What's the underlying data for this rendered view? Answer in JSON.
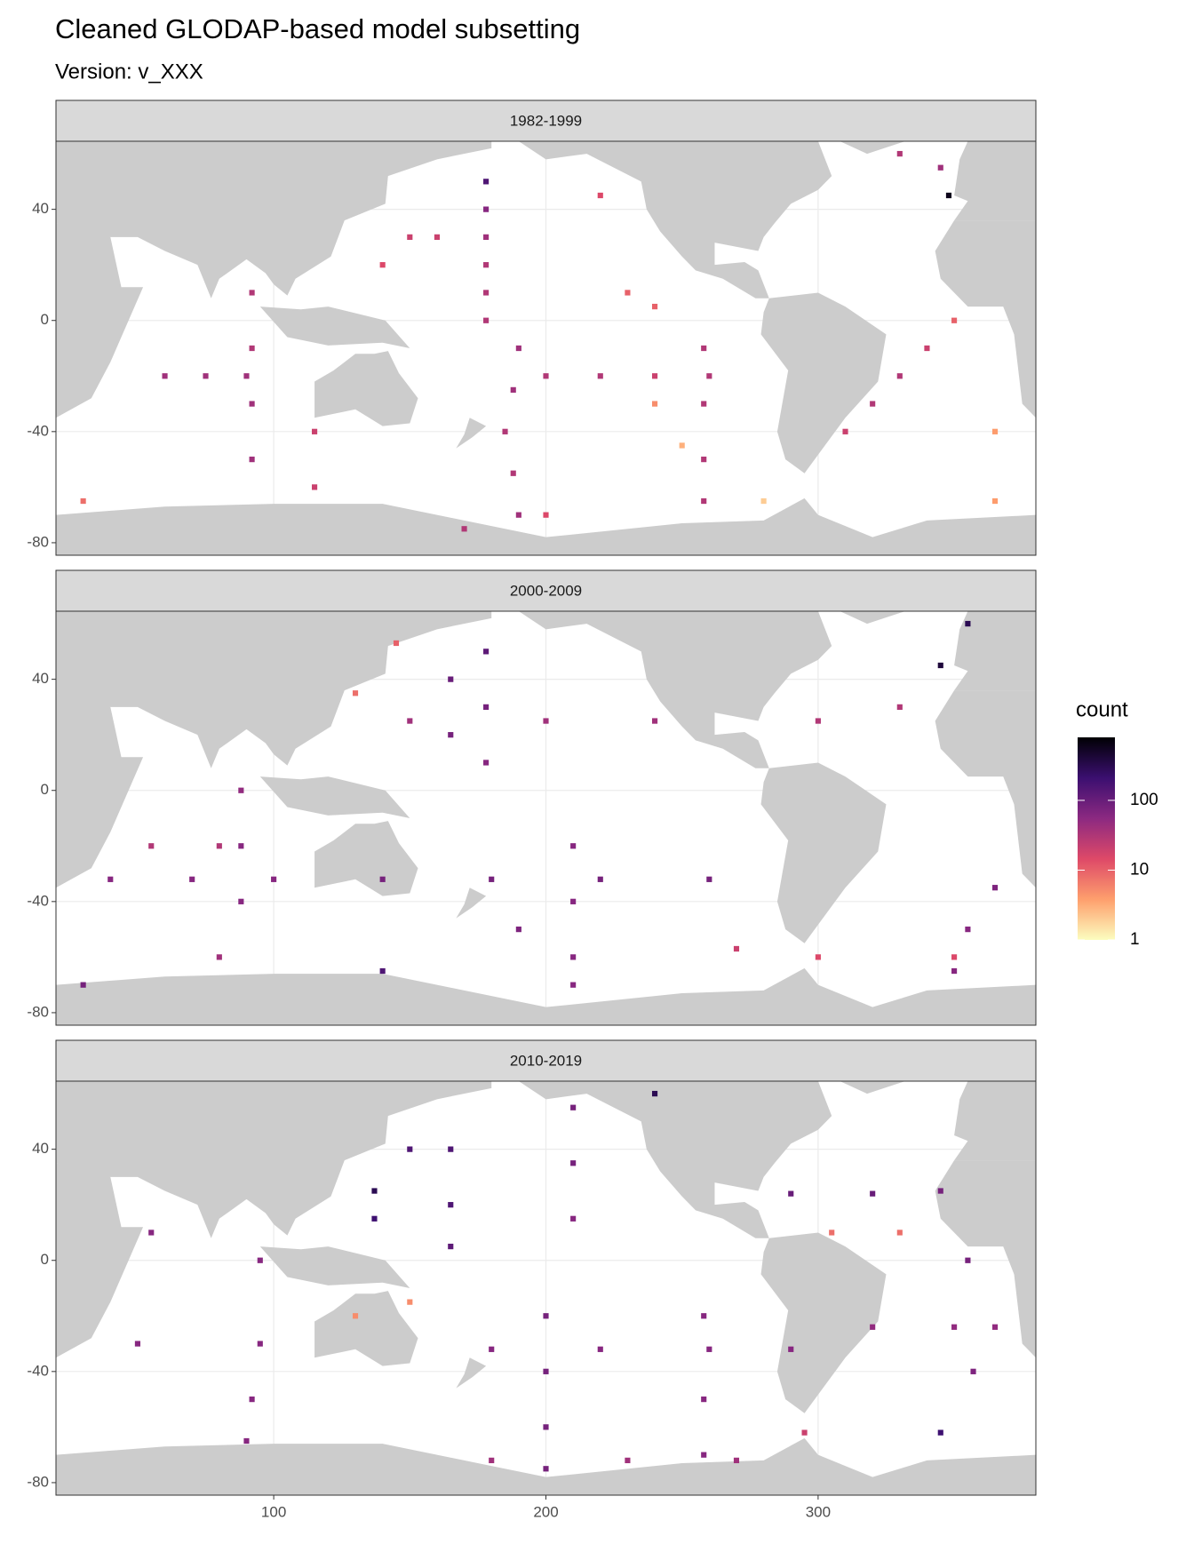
{
  "chart_data": {
    "type": "tile",
    "title": "Cleaned GLODAP-based model subsetting",
    "subtitle": "Version: v_XXX",
    "legend_title": "count",
    "xlim": [
      20,
      380
    ],
    "ylim": [
      -84.5,
      64.5
    ],
    "xticks": [
      100,
      200,
      300
    ],
    "yticks": [
      -80,
      -40,
      0,
      40
    ],
    "grid": true,
    "color_scale": {
      "log": true,
      "limits": [
        1,
        800
      ],
      "ticks": [
        1,
        10,
        100
      ],
      "colors": [
        "#fcfdbf",
        "#fe9f6d",
        "#de4968",
        "#8c2981",
        "#3b0f70",
        "#000004"
      ]
    },
    "facets": [
      {
        "label": "1982-1999",
        "x": [
          178,
          178,
          178,
          178,
          178,
          178,
          190,
          188,
          185,
          188,
          190,
          200,
          220,
          240,
          260,
          348,
          345,
          330,
          258,
          258,
          258,
          258,
          60,
          75,
          90,
          92,
          92,
          92,
          92,
          115,
          115,
          310,
          320,
          330,
          340,
          350,
          240,
          250,
          280,
          365,
          365,
          30,
          150,
          160,
          140,
          220,
          230,
          240,
          200,
          170
        ],
        "y": [
          50,
          40,
          30,
          20,
          10,
          0,
          -10,
          -25,
          -40,
          -55,
          -70,
          -20,
          -20,
          -20,
          -20,
          45,
          55,
          60,
          -10,
          -30,
          -50,
          -65,
          -20,
          -20,
          -20,
          10,
          -10,
          -30,
          -50,
          -40,
          -60,
          -40,
          -30,
          -20,
          -10,
          0,
          -30,
          -45,
          -65,
          -40,
          -65,
          -65,
          30,
          30,
          20,
          45,
          10,
          5,
          -70,
          -75
        ],
        "values": [
          150,
          60,
          40,
          30,
          30,
          30,
          40,
          40,
          30,
          30,
          40,
          30,
          30,
          20,
          30,
          600,
          40,
          30,
          30,
          30,
          30,
          30,
          40,
          40,
          40,
          30,
          30,
          40,
          40,
          20,
          20,
          20,
          30,
          30,
          20,
          10,
          5,
          3,
          2,
          4,
          4,
          8,
          20,
          20,
          15,
          15,
          10,
          10,
          15,
          30
        ]
      },
      {
        "label": "2000-2009",
        "x": [
          40,
          70,
          100,
          140,
          180,
          220,
          260,
          178,
          178,
          178,
          210,
          210,
          210,
          210,
          165,
          165,
          150,
          200,
          240,
          345,
          355,
          55,
          80,
          88,
          88,
          88,
          80,
          300,
          330,
          270,
          300,
          350,
          365,
          355,
          350,
          30,
          140,
          190,
          145,
          130
        ],
        "y": [
          -32,
          -32,
          -32,
          -32,
          -32,
          -32,
          -32,
          50,
          30,
          10,
          -20,
          -40,
          -60,
          -70,
          40,
          20,
          25,
          25,
          25,
          45,
          60,
          -20,
          -20,
          0,
          -20,
          -40,
          -60,
          25,
          30,
          -57,
          -60,
          -60,
          -35,
          -50,
          -65,
          -70,
          -65,
          -50,
          53,
          35
        ],
        "values": [
          60,
          60,
          60,
          80,
          80,
          80,
          80,
          120,
          80,
          60,
          60,
          60,
          60,
          60,
          100,
          80,
          40,
          40,
          40,
          400,
          300,
          30,
          30,
          50,
          60,
          60,
          40,
          30,
          30,
          20,
          15,
          15,
          70,
          60,
          60,
          80,
          150,
          70,
          10,
          8
        ]
      },
      {
        "label": "2010-2019",
        "x": [
          180,
          220,
          260,
          290,
          200,
          200,
          200,
          200,
          137,
          137,
          165,
          165,
          165,
          150,
          210,
          210,
          210,
          290,
          320,
          345,
          95,
          95,
          92,
          90,
          55,
          50,
          258,
          258,
          258,
          320,
          350,
          365,
          355,
          357,
          345,
          295,
          305,
          330,
          180,
          230,
          270,
          240,
          130,
          150
        ],
        "y": [
          -32,
          -32,
          -32,
          -32,
          -20,
          -40,
          -60,
          -75,
          25,
          15,
          40,
          20,
          5,
          40,
          55,
          35,
          15,
          24,
          24,
          25,
          0,
          -30,
          -50,
          -65,
          10,
          -30,
          -20,
          -50,
          -70,
          -24,
          -24,
          -24,
          0,
          -40,
          -62,
          -62,
          10,
          10,
          -72,
          -72,
          -72,
          60,
          -20,
          -15
        ],
        "values": [
          60,
          60,
          60,
          60,
          80,
          80,
          80,
          80,
          300,
          200,
          150,
          150,
          120,
          150,
          80,
          80,
          60,
          100,
          100,
          80,
          60,
          60,
          60,
          60,
          60,
          60,
          60,
          60,
          60,
          50,
          50,
          50,
          80,
          70,
          200,
          20,
          8,
          8,
          40,
          40,
          40,
          300,
          5,
          5
        ]
      }
    ]
  }
}
